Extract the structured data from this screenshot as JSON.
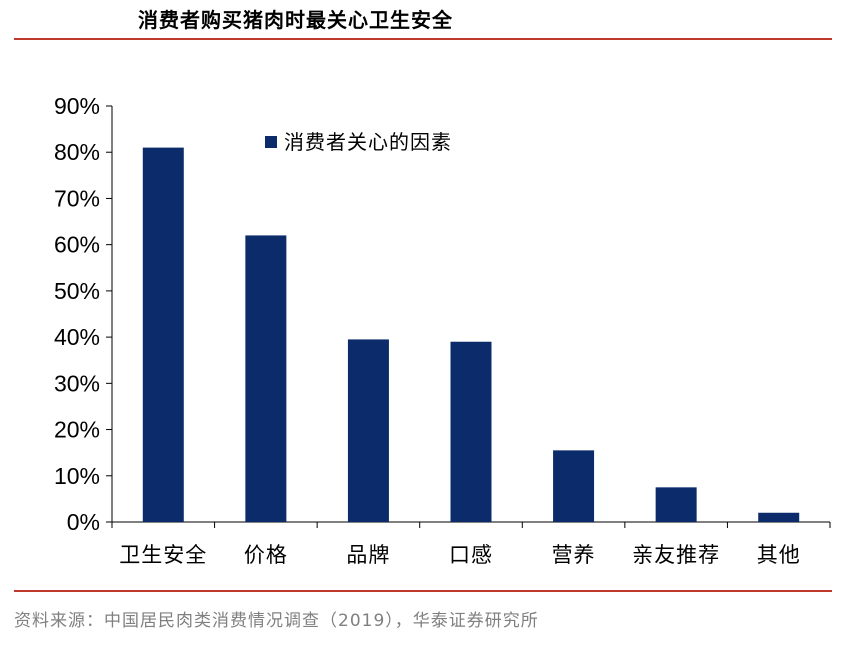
{
  "header": {
    "title": "消费者购买猪肉时最关心卫生安全"
  },
  "footer": {
    "source": "资料来源：中国居民肉类消费情况调查（2019），华泰证券研究所"
  },
  "chart_data": {
    "type": "bar",
    "title": "消费者购买猪肉时最关心卫生安全",
    "categories": [
      "卫生安全",
      "价格",
      "品牌",
      "口感",
      "营养",
      "亲友推荐",
      "其他"
    ],
    "series": [
      {
        "name": "消费者关心的因素",
        "values": [
          81,
          62,
          39.5,
          39,
          15.5,
          7.5,
          2
        ]
      }
    ],
    "yticks": [
      "0%",
      "10%",
      "20%",
      "30%",
      "40%",
      "50%",
      "60%",
      "70%",
      "80%",
      "90%"
    ],
    "ylim": [
      0,
      90
    ],
    "unit": "%",
    "bar_color": "#0c2b6b",
    "grid": false,
    "legend_position": "top-center"
  }
}
